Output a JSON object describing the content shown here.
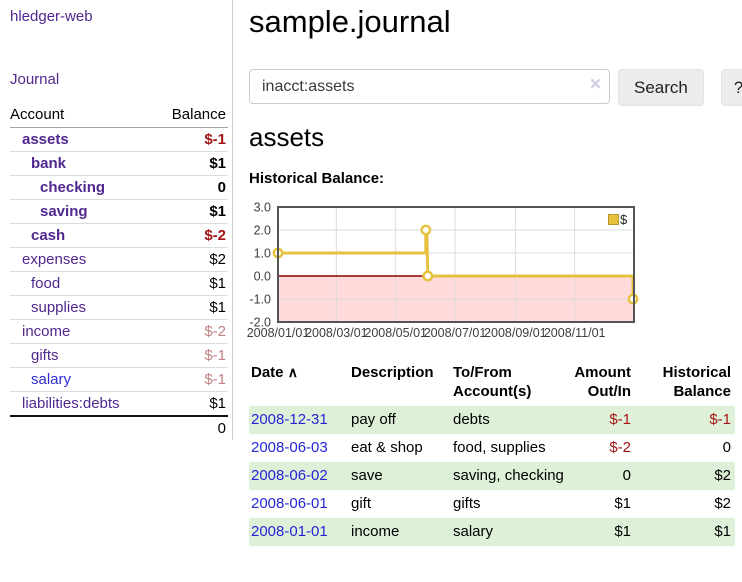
{
  "sidebar": {
    "app_title": "hledger-web",
    "nav_journal": "Journal",
    "accounts_table": {
      "headers": {
        "account": "Account",
        "balance": "Balance"
      },
      "rows": [
        {
          "name": "assets",
          "depth": 1,
          "bold": true,
          "balance": "$-1",
          "balance_style": "negs"
        },
        {
          "name": "bank",
          "depth": 2,
          "bold": true,
          "balance": "$1",
          "balance_style": ""
        },
        {
          "name": "checking",
          "depth": 3,
          "bold": true,
          "balance": "0",
          "balance_style": ""
        },
        {
          "name": "saving",
          "depth": 3,
          "bold": true,
          "balance": "$1",
          "balance_style": ""
        },
        {
          "name": "cash",
          "depth": 2,
          "bold": true,
          "balance": "$-2",
          "balance_style": "negs"
        },
        {
          "name": "expenses",
          "depth": 1,
          "bold": false,
          "balance": "$2",
          "balance_style": ""
        },
        {
          "name": "food",
          "depth": 2,
          "bold": false,
          "balance": "$1",
          "balance_style": ""
        },
        {
          "name": "supplies",
          "depth": 2,
          "bold": false,
          "balance": "$1",
          "balance_style": ""
        },
        {
          "name": "income",
          "depth": 1,
          "bold": false,
          "balance": "$-2",
          "balance_style": "negf"
        },
        {
          "name": "gifts",
          "depth": 2,
          "bold": false,
          "balance": "$-1",
          "balance_style": "negf"
        },
        {
          "name": "salary",
          "depth": 2,
          "bold": false,
          "blue": true,
          "balance": "$-1",
          "balance_style": "negf"
        },
        {
          "name": "liabilities:debts",
          "depth": 1,
          "bold": false,
          "balance": "$1",
          "balance_style": ""
        }
      ],
      "total": "0"
    }
  },
  "main": {
    "title": "sample.journal",
    "search": {
      "value": "inacct:assets",
      "clear_icon": "×",
      "button": "Search",
      "help_button": "?"
    },
    "account_heading": "assets",
    "chart_heading": "Historical Balance:",
    "register_table": {
      "headers": {
        "date": "Date",
        "sort_icon": "∧",
        "description": "Description",
        "accounts": "To/From Account(s)",
        "amount": "Amount Out/In",
        "balance": "Historical Balance"
      },
      "rows": [
        {
          "date": "2008-12-31",
          "description": "pay off",
          "accounts": "debts",
          "amount": "$-1",
          "amount_neg": true,
          "balance": "$-1",
          "balance_neg": true,
          "green": true
        },
        {
          "date": "2008-06-03",
          "description": "eat & shop",
          "accounts": "food, supplies",
          "amount": "$-2",
          "amount_neg": true,
          "balance": "0",
          "balance_neg": false,
          "green": false
        },
        {
          "date": "2008-06-02",
          "description": "save",
          "accounts": "saving, checking",
          "amount": "0",
          "amount_neg": false,
          "balance": "$2",
          "balance_neg": false,
          "green": true
        },
        {
          "date": "2008-06-01",
          "description": "gift",
          "accounts": "gifts",
          "amount": "$1",
          "amount_neg": false,
          "balance": "$2",
          "balance_neg": false,
          "green": false
        },
        {
          "date": "2008-01-01",
          "description": "income",
          "accounts": "salary",
          "amount": "$1",
          "amount_neg": false,
          "balance": "$1",
          "balance_neg": false,
          "green": true
        }
      ]
    }
  },
  "chart_data": {
    "type": "line",
    "title": "Historical Balance:",
    "series": [
      {
        "name": "$",
        "color": "#e6c13d",
        "points": [
          [
            "2008-01-01",
            1
          ],
          [
            "2008-06-01",
            1
          ],
          [
            "2008-06-01",
            2
          ],
          [
            "2008-06-02",
            2
          ],
          [
            "2008-06-03",
            0
          ],
          [
            "2008-12-31",
            0
          ],
          [
            "2008-12-31",
            -1
          ]
        ],
        "markers": [
          [
            "2008-01-01",
            1
          ],
          [
            "2008-06-01",
            2
          ],
          [
            "2008-06-03",
            0
          ],
          [
            "2008-12-31",
            -1
          ]
        ]
      }
    ],
    "x_range": [
      "2008-01-01",
      "2009-01-01"
    ],
    "ylim": [
      -2,
      3
    ],
    "y_ticks": [
      "3.0",
      "2.0",
      "1.0",
      "0.0",
      "-1.0",
      "-2.0"
    ],
    "x_ticks": [
      "2008/01/01",
      "2008/03/01",
      "2008/05/01",
      "2008/07/01",
      "2008/09/01",
      "2008/11/01"
    ],
    "grid": true,
    "legend_position": "top-right",
    "negative_region_color": "#ffdbdb",
    "zero_line_color": "#8b0000",
    "plot_border_color": "#545454",
    "grid_color": "#dcdcdc"
  }
}
